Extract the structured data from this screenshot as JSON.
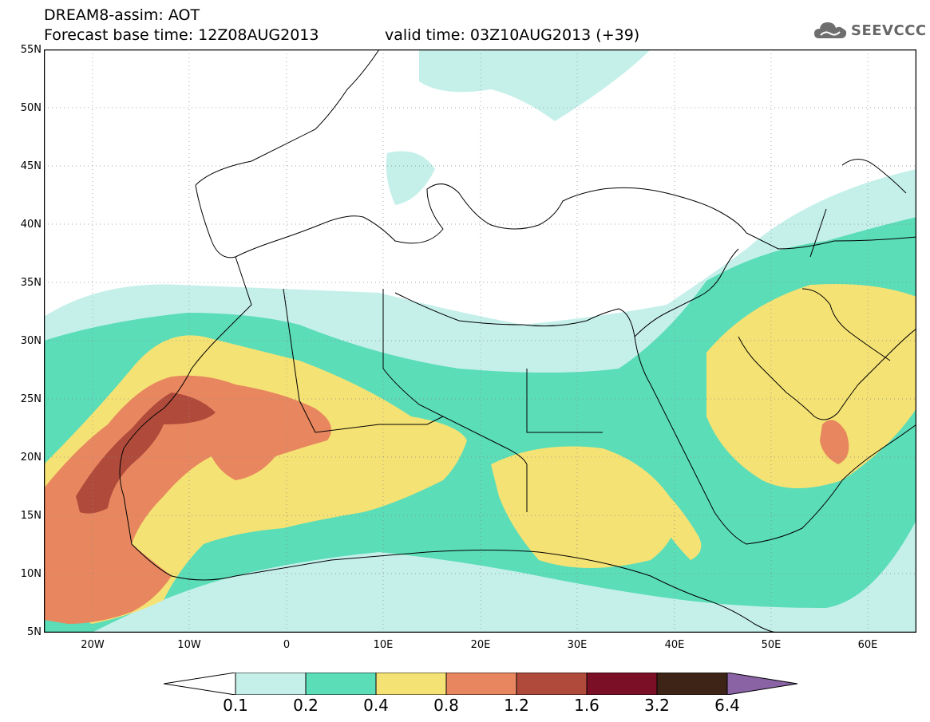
{
  "header": {
    "line1": "DREAM8-assim: AOT",
    "line2": "Forecast base time: 12Z08AUG2013",
    "line3": "valid time: 03Z10AUG2013 (+39)"
  },
  "logo": {
    "text": "SEEVCCC",
    "icon": "cloud-icon"
  },
  "map": {
    "lat_labels": [
      "55N",
      "50N",
      "45N",
      "40N",
      "35N",
      "30N",
      "25N",
      "20N",
      "15N",
      "10N",
      "5N"
    ],
    "lon_labels": [
      "20W",
      "10W",
      "0",
      "10E",
      "20E",
      "30E",
      "40E",
      "50E",
      "60E"
    ],
    "lon_range": [
      -25,
      65
    ],
    "lat_range": [
      5,
      55
    ],
    "grid": "dotted"
  },
  "colorbar": {
    "labels": [
      "0.1",
      "0.2",
      "0.4",
      "0.8",
      "1.2",
      "1.6",
      "3.2",
      "6.4"
    ],
    "colors": [
      "#ffffff",
      "#c5f0ea",
      "#5bddb8",
      "#f5e274",
      "#e8875f",
      "#b04b3c",
      "#7a0f26",
      "#3d2417",
      "#8a63a5"
    ]
  }
}
